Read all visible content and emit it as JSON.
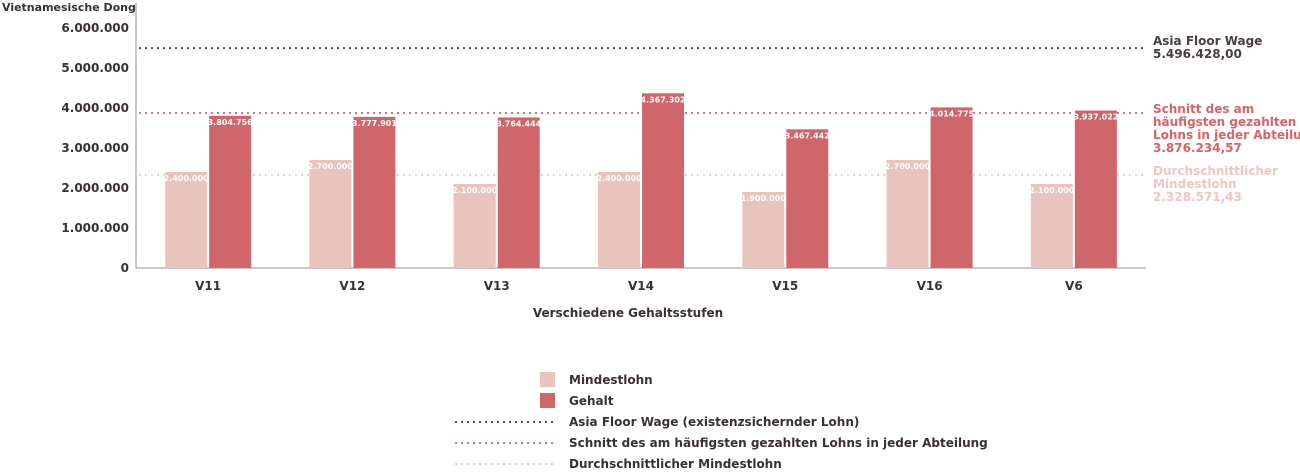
{
  "chart_data": {
    "type": "bar",
    "ylabel": "Vietnamesische Dong",
    "xlabel": "Verschiedene Gehaltsstufen",
    "ylim": [
      0,
      6500000
    ],
    "y_ticks": [
      "6.000.000",
      "5.000.000",
      "4.000.000",
      "3.000.000",
      "2.000.000",
      "1.000.000",
      "0"
    ],
    "y_tick_values": [
      6000000,
      5000000,
      4000000,
      3000000,
      2000000,
      1000000,
      0
    ],
    "categories": [
      "V11",
      "V12",
      "V13",
      "V14",
      "V15",
      "V16",
      "V6"
    ],
    "series": [
      {
        "name": "Mindestlohn",
        "color": "#e8c4bc",
        "values": [
          2400000,
          2700000,
          2100000,
          2400000,
          1900000,
          2700000,
          2100000
        ],
        "labels": [
          "2.400.000",
          "2.700.000",
          "2.100.000",
          "2.400.000",
          "1.900.000",
          "2.700.000",
          "2.100.000"
        ]
      },
      {
        "name": "Gehalt",
        "color": "#cf666c",
        "values": [
          3804756,
          3777901,
          3764444,
          4367302,
          3467442,
          4014775,
          3937022
        ],
        "labels": [
          "3.804.756",
          "3.777.901",
          "3.764.444",
          "4.367.302",
          "3.467.442",
          "4.014.775",
          "3.937.022"
        ]
      }
    ],
    "reference_lines": [
      {
        "name": "Asia Floor Wage (existenzsichernder Lohn)",
        "value": 5496428,
        "color": "#4a3f3f",
        "annotation": [
          "Asia Floor Wage",
          "5.496.428,00"
        ]
      },
      {
        "name": "Schnitt des am häufigsten gezahlten Lohns in jeder Abteilung",
        "value": 3876234.57,
        "color": "#d9636a",
        "annotation": [
          "Schnitt des am",
          "häufigsten gezahlten",
          "Lohns in jeder Abteilung",
          "3.876.234,57"
        ]
      },
      {
        "name": "Durchschnittlicher Mindestlohn",
        "value": 2328571.43,
        "color": "#eec7c0",
        "annotation": [
          "Durchschnittlicher",
          "Mindestlohn",
          "2.328.571,43"
        ]
      }
    ],
    "legend": {
      "placement": "bottom-center",
      "items": [
        {
          "kind": "box",
          "label": "Mindestlohn",
          "color": "#e8c4bc"
        },
        {
          "kind": "box",
          "label": "Gehalt",
          "color": "#cf666c"
        },
        {
          "kind": "dots",
          "label": "Asia Floor Wage (existenzsichernder Lohn)",
          "color": "#4a3f3f"
        },
        {
          "kind": "dots",
          "label": "Schnitt des am häufigsten gezahlten Lohns in jeder Abteilung",
          "color": "#d9636a"
        },
        {
          "kind": "dots",
          "label": "Durchschnittlicher Mindestlohn",
          "color": "#eec7c0"
        }
      ]
    },
    "grid": false
  }
}
